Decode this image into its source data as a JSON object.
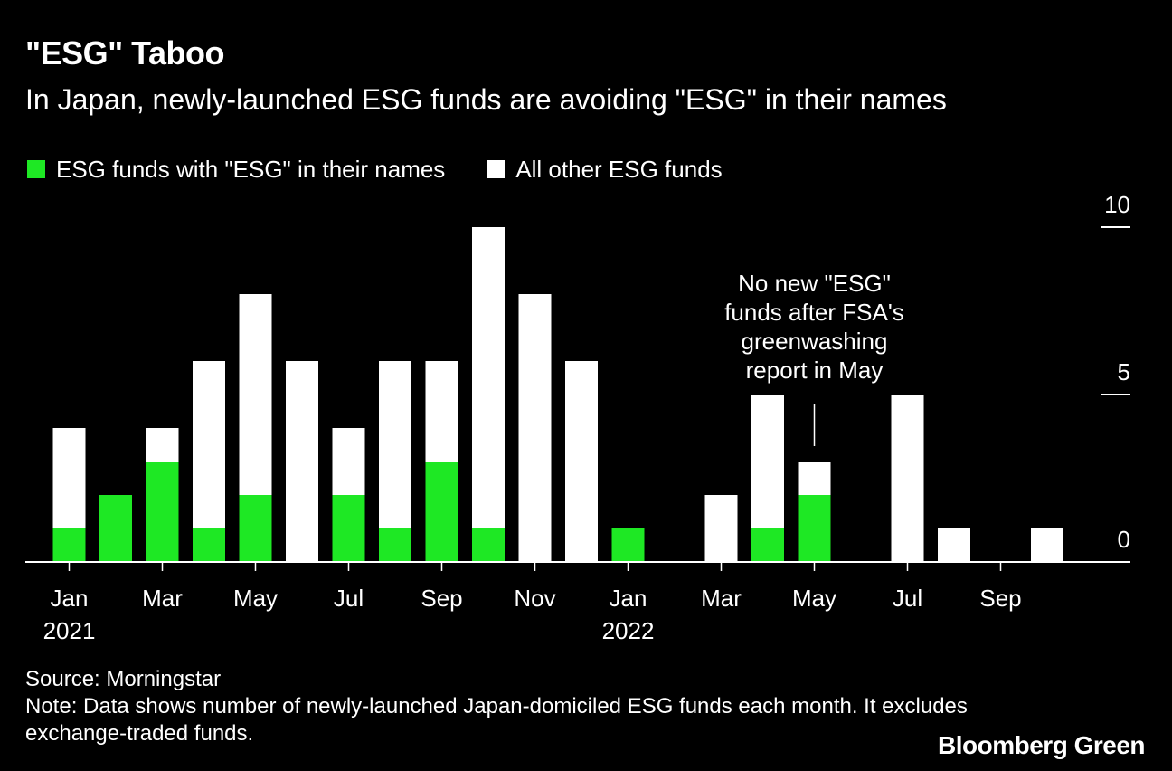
{
  "header": {
    "title": "\"ESG\" Taboo",
    "subtitle": "In Japan, newly-launched ESG funds are avoiding \"ESG\" in their names"
  },
  "legend": {
    "esg_named": "ESG funds with \"ESG\" in their names",
    "other": "All other ESG funds"
  },
  "colors": {
    "esg_named": "#1ee824",
    "other": "#ffffff",
    "background": "#000000"
  },
  "chart_data": {
    "type": "bar",
    "stacked": true,
    "categories": [
      "Jan 2021",
      "Feb 2021",
      "Mar 2021",
      "Apr 2021",
      "May 2021",
      "Jun 2021",
      "Jul 2021",
      "Aug 2021",
      "Sep 2021",
      "Oct 2021",
      "Nov 2021",
      "Dec 2021",
      "Jan 2022",
      "Feb 2022",
      "Mar 2022",
      "Apr 2022",
      "May 2022",
      "Jun 2022",
      "Jul 2022",
      "Aug 2022",
      "Sep 2022",
      "Oct 2022"
    ],
    "series": [
      {
        "name": "ESG funds with \"ESG\" in their names",
        "values": [
          1,
          2,
          3,
          1,
          2,
          0,
          2,
          1,
          3,
          1,
          0,
          0,
          1,
          0,
          0,
          1,
          2,
          0,
          0,
          0,
          0,
          0
        ]
      },
      {
        "name": "All other ESG funds",
        "values": [
          3,
          0,
          1,
          5,
          6,
          6,
          2,
          5,
          3,
          9,
          8,
          6,
          0,
          0,
          2,
          4,
          1,
          0,
          5,
          1,
          0,
          1
        ]
      }
    ],
    "ylim": [
      0,
      10
    ],
    "yticks": [
      "0",
      "5",
      "10"
    ],
    "y_axis_side": "right",
    "xticks": [
      {
        "month": "Jan",
        "year": "2021"
      },
      {
        "month": "Mar",
        "year": ""
      },
      {
        "month": "May",
        "year": ""
      },
      {
        "month": "Jul",
        "year": ""
      },
      {
        "month": "Sep",
        "year": ""
      },
      {
        "month": "Nov",
        "year": ""
      },
      {
        "month": "Jan",
        "year": "2022"
      },
      {
        "month": "Mar",
        "year": ""
      },
      {
        "month": "May",
        "year": ""
      },
      {
        "month": "Jul",
        "year": ""
      },
      {
        "month": "Sep",
        "year": ""
      }
    ],
    "annotation": {
      "lines": [
        "No new \"ESG\"",
        "funds after FSA's",
        "greenwashing",
        "report in May"
      ],
      "category": "May 2022"
    },
    "legend_position": "top-left"
  },
  "footer": {
    "source": "Source: Morningstar",
    "note_line1": "Note: Data shows number of newly-launched Japan-domiciled ESG funds each month. It excludes",
    "note_line2": "exchange-traded funds.",
    "brand": "Bloomberg Green"
  }
}
